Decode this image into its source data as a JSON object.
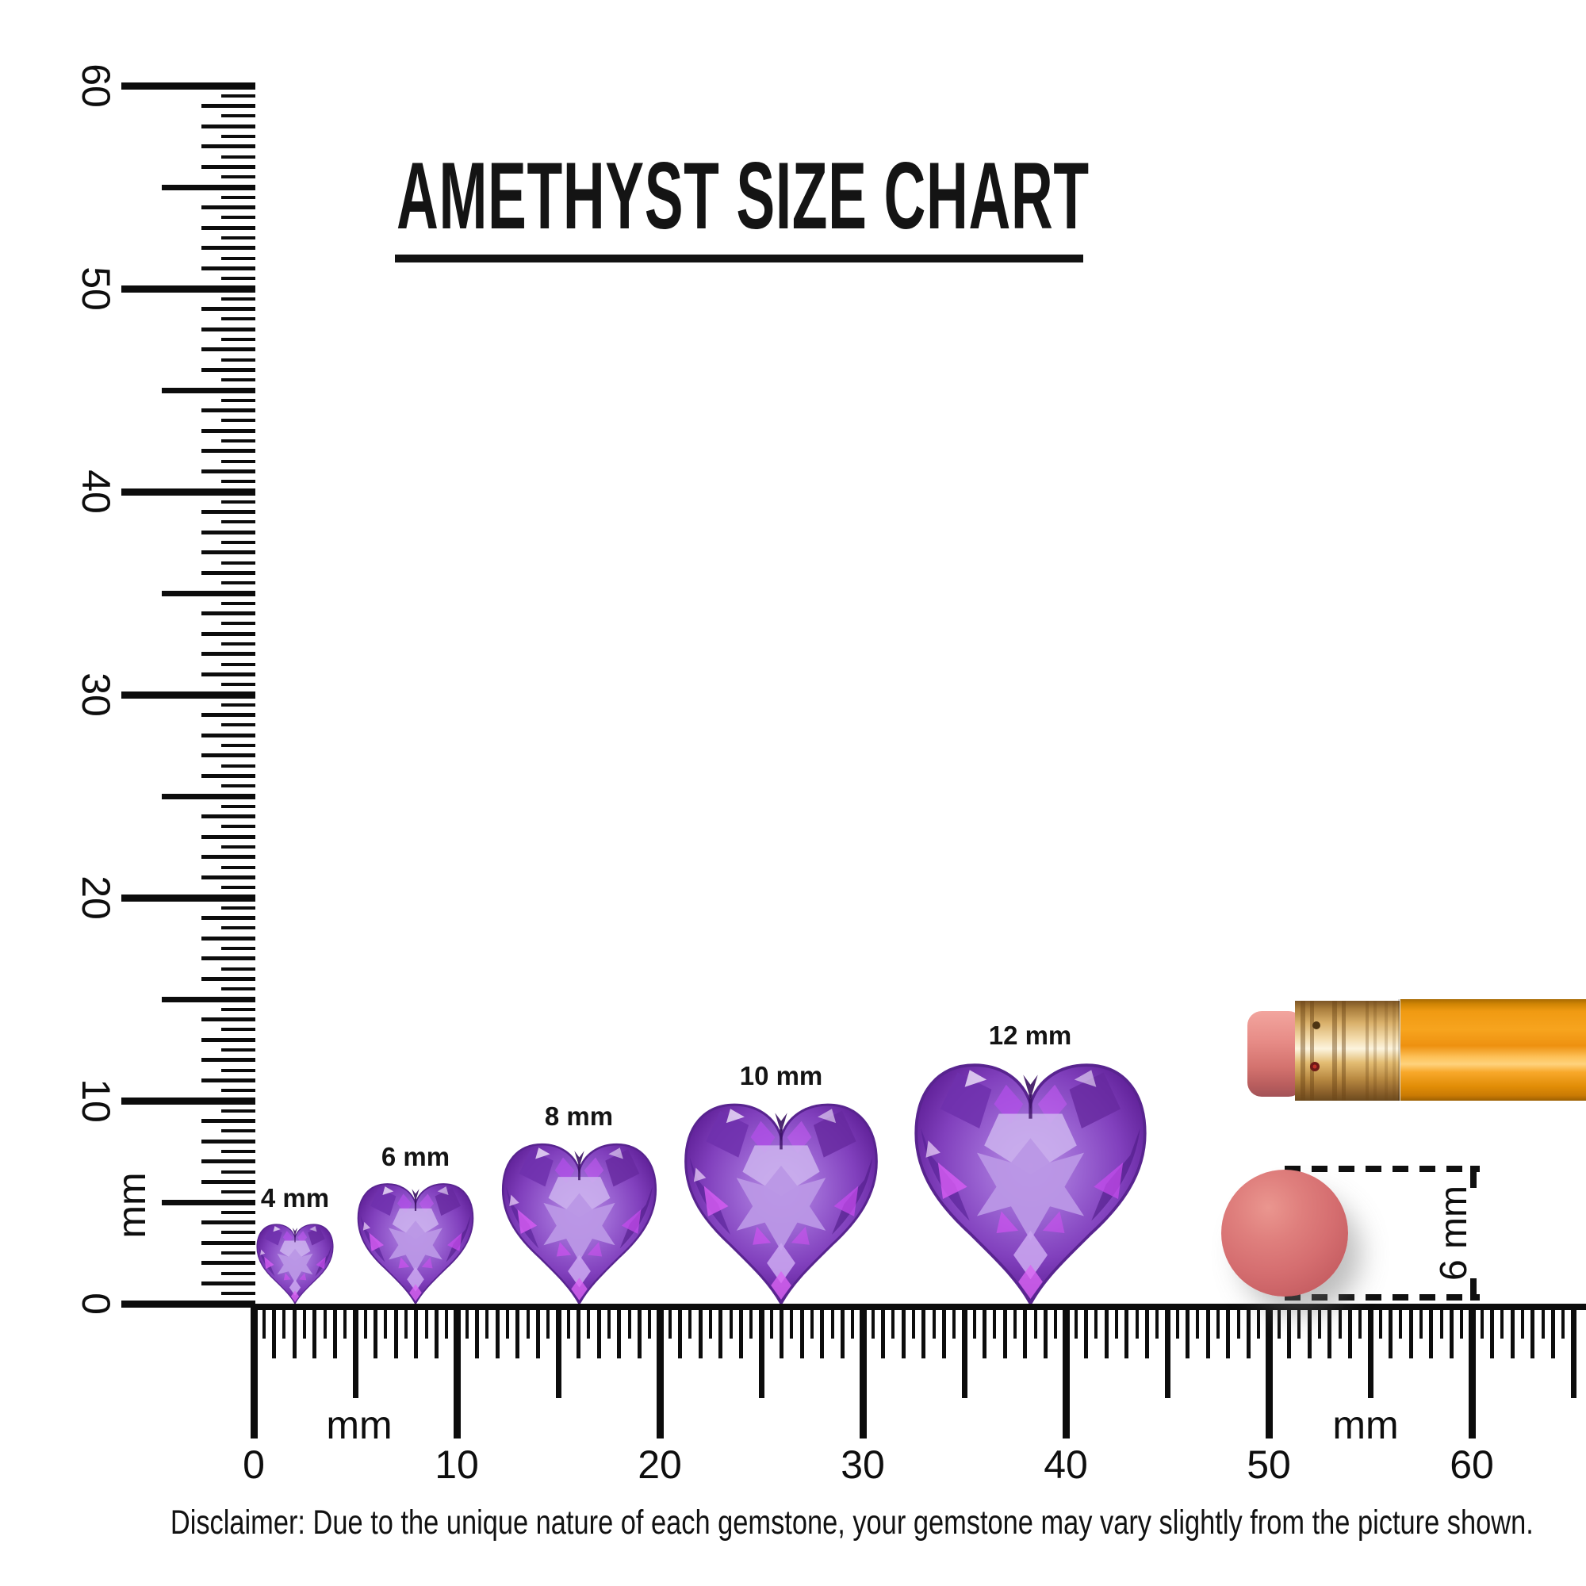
{
  "title": "AMETHYST SIZE CHART",
  "rulers": {
    "vertical": {
      "unit_label": "mm",
      "tick_labels": [
        "60",
        "50",
        "40",
        "30",
        "20",
        "10",
        "0"
      ]
    },
    "horizontal": {
      "unit_labels": [
        "mm",
        "mm"
      ],
      "tick_labels": [
        "0",
        "10",
        "20",
        "30",
        "40",
        "50",
        "60"
      ]
    }
  },
  "gems": [
    {
      "label": "4 mm",
      "size_mm": 4
    },
    {
      "label": "6 mm",
      "size_mm": 6
    },
    {
      "label": "8 mm",
      "size_mm": 8
    },
    {
      "label": "10 mm",
      "size_mm": 10
    },
    {
      "label": "12 mm",
      "size_mm": 12
    }
  ],
  "comparison": {
    "eraser_diameter_label": "6 mm",
    "objects": [
      "pencil",
      "pencil-eraser-disc"
    ]
  },
  "disclaimer": "Disclaimer: Due to the unique nature of each gemstone, your gemstone may vary slightly from the picture shown.",
  "colors": {
    "ink": "#121212",
    "amethyst_light": "#c0a2ea",
    "amethyst_mid": "#8a4fc8",
    "amethyst_dark": "#4a1678",
    "amethyst_glint": "#d24bf2",
    "pencil_body_orange": "#f7a41e",
    "ferrule_gold": "#d9ab63",
    "eraser_pink": "#e4837f",
    "eraser_disc_red": "#d56e70"
  }
}
